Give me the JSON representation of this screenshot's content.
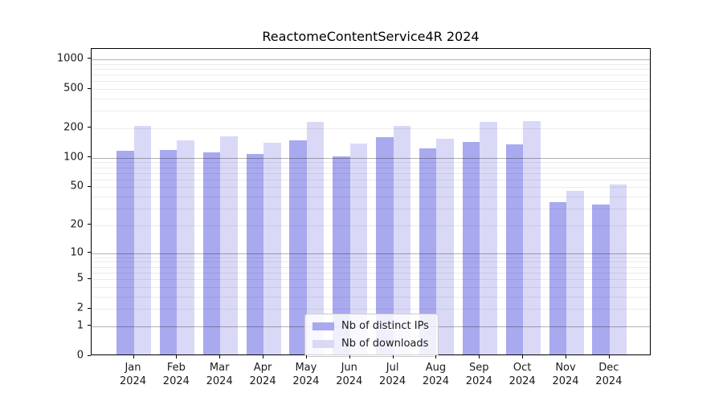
{
  "title": "ReactomeContentService4R 2024",
  "legend": {
    "items": [
      {
        "label": "Nb of distinct IPs",
        "color": "#a9a9ef"
      },
      {
        "label": "Nb of downloads",
        "color": "#d9d9f7"
      }
    ]
  },
  "chart_data": {
    "type": "bar",
    "title": "ReactomeContentService4R 2024",
    "categories": [
      "Jan 2024",
      "Feb 2024",
      "Mar 2024",
      "Apr 2024",
      "May 2024",
      "Jun 2024",
      "Jul 2024",
      "Aug 2024",
      "Sep 2024",
      "Oct 2024",
      "Nov 2024",
      "Dec 2024"
    ],
    "series": [
      {
        "name": "Nb of distinct IPs",
        "color": "#a9a9ef",
        "values": [
          113,
          116,
          110,
          105,
          145,
          100,
          157,
          120,
          140,
          133,
          34,
          32
        ]
      },
      {
        "name": "Nb of downloads",
        "color": "#d9d9f7",
        "values": [
          205,
          145,
          160,
          137,
          225,
          134,
          202,
          152,
          222,
          230,
          44,
          51
        ]
      }
    ],
    "xlabel": "",
    "ylabel": "",
    "y_ticks": [
      0,
      1,
      2,
      5,
      10,
      20,
      50,
      100,
      200,
      500,
      1000
    ],
    "y_scale": "log1p",
    "ylim": [
      0,
      1280
    ],
    "grid": "horizontal, major lines at 1/10/100/1000, light minor log lines",
    "legend_position": "lower center",
    "bar_colors": {
      "distinct_ips": "#a9a9ef",
      "downloads": "#d9d9f7"
    }
  }
}
